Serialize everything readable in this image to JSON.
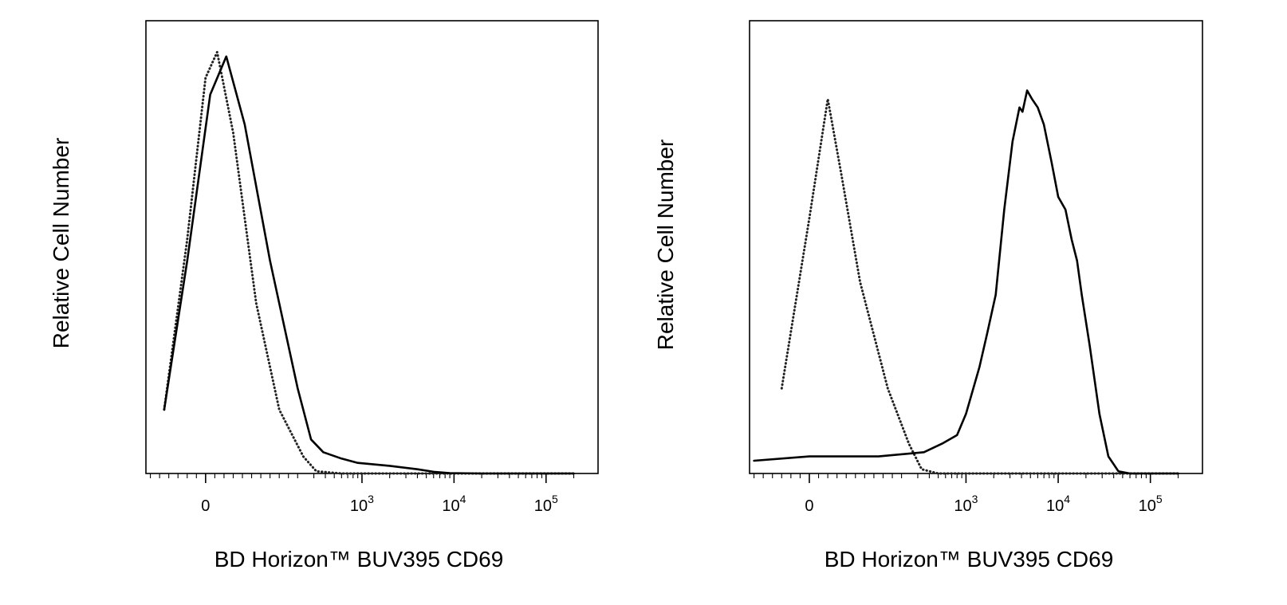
{
  "chart_data": [
    {
      "type": "line",
      "title": "",
      "xlabel": "BD Horizon™ BUV395 CD69",
      "ylabel": "Relative Cell Number",
      "x_scale": "biexponential",
      "xlim": [
        -300,
        200000
      ],
      "ylim": [
        0,
        1.0
      ],
      "grid": false,
      "x_tick_labels": [
        {
          "base": "0",
          "exp": "",
          "value": 0
        },
        {
          "base": "10",
          "exp": "3",
          "value": 1000
        },
        {
          "base": "10",
          "exp": "4",
          "value": 10000
        },
        {
          "base": "10",
          "exp": "5",
          "value": 100000
        }
      ],
      "series": [
        {
          "style": "dotted",
          "color": "#222222",
          "points": [
            [
              -250,
              0
            ],
            [
              -150,
              0.02
            ],
            [
              -90,
              0.15
            ],
            [
              -40,
              0.55
            ],
            [
              0,
              0.93
            ],
            [
              25,
              0.99
            ],
            [
              60,
              0.8
            ],
            [
              110,
              0.4
            ],
            [
              160,
              0.15
            ],
            [
              230,
              0.04
            ],
            [
              320,
              0.005
            ],
            [
              600,
              0
            ],
            [
              200000,
              0
            ]
          ]
        },
        {
          "style": "solid",
          "color": "#000000",
          "points": [
            [
              -250,
              0
            ],
            [
              -150,
              0.02
            ],
            [
              -90,
              0.15
            ],
            [
              -40,
              0.5
            ],
            [
              10,
              0.89
            ],
            [
              45,
              0.98
            ],
            [
              85,
              0.82
            ],
            [
              140,
              0.5
            ],
            [
              200,
              0.2
            ],
            [
              280,
              0.08
            ],
            [
              380,
              0.05
            ],
            [
              600,
              0.035
            ],
            [
              900,
              0.025
            ],
            [
              2000,
              0.018
            ],
            [
              4000,
              0.01
            ],
            [
              6000,
              0.004
            ],
            [
              9000,
              0.001
            ],
            [
              20000,
              0
            ],
            [
              200000,
              0
            ]
          ]
        }
      ]
    },
    {
      "type": "line",
      "title": "",
      "xlabel": "BD Horizon™ BUV395 CD69",
      "ylabel": "Relative Cell Number",
      "x_scale": "biexponential",
      "xlim": [
        -300,
        200000
      ],
      "ylim": [
        0,
        1.0
      ],
      "grid": false,
      "x_tick_labels": [
        {
          "base": "0",
          "exp": "",
          "value": 0
        },
        {
          "base": "10",
          "exp": "3",
          "value": 1000
        },
        {
          "base": "10",
          "exp": "4",
          "value": 10000
        },
        {
          "base": "10",
          "exp": "5",
          "value": 100000
        }
      ],
      "series": [
        {
          "style": "dotted",
          "color": "#222222",
          "points": [
            [
              -280,
              0
            ],
            [
              -150,
              0.02
            ],
            [
              -60,
              0.2
            ],
            [
              0,
              0.6
            ],
            [
              40,
              0.88
            ],
            [
              70,
              0.7
            ],
            [
              110,
              0.45
            ],
            [
              170,
              0.2
            ],
            [
              240,
              0.07
            ],
            [
              330,
              0.01
            ],
            [
              500,
              0
            ],
            [
              200000,
              0
            ]
          ]
        },
        {
          "style": "solid",
          "color": "#000000",
          "points": [
            [
              -260,
              0
            ],
            [
              -120,
              0.03
            ],
            [
              0,
              0.04
            ],
            [
              150,
              0.04
            ],
            [
              350,
              0.05
            ],
            [
              550,
              0.07
            ],
            [
              800,
              0.09
            ],
            [
              1000,
              0.14
            ],
            [
              1400,
              0.25
            ],
            [
              1700,
              0.33
            ],
            [
              2100,
              0.42
            ],
            [
              2600,
              0.62
            ],
            [
              3200,
              0.78
            ],
            [
              3800,
              0.86
            ],
            [
              4100,
              0.85
            ],
            [
              4600,
              0.9
            ],
            [
              5200,
              0.88
            ],
            [
              6000,
              0.86
            ],
            [
              7000,
              0.82
            ],
            [
              8500,
              0.73
            ],
            [
              10000,
              0.65
            ],
            [
              12000,
              0.62
            ],
            [
              14000,
              0.55
            ],
            [
              16000,
              0.5
            ],
            [
              18000,
              0.42
            ],
            [
              22000,
              0.3
            ],
            [
              28000,
              0.14
            ],
            [
              35000,
              0.04
            ],
            [
              45000,
              0.005
            ],
            [
              60000,
              0
            ],
            [
              200000,
              0
            ]
          ]
        }
      ]
    }
  ]
}
